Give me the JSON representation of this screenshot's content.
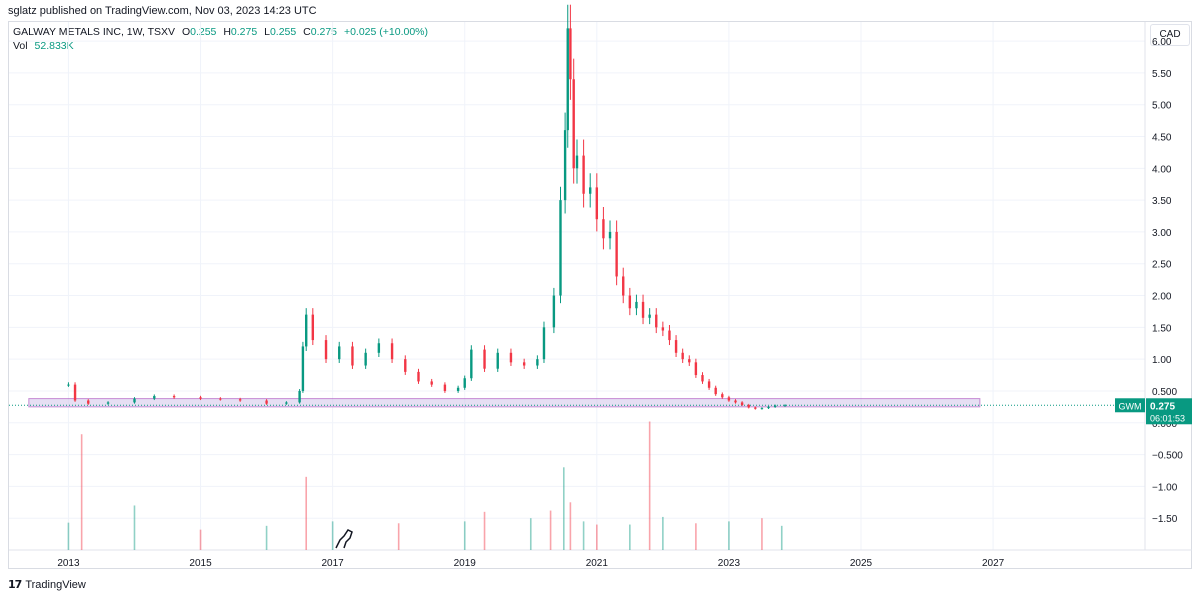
{
  "header": {
    "published_by": "sglatz published on TradingView.com, Nov 03, 2023 14:23 UTC"
  },
  "legend": {
    "symbol_line": "GALWAY METALS INC, 1W, TSXV",
    "o_label": "O",
    "o_value": "0.255",
    "h_label": "H",
    "h_value": "0.275",
    "l_label": "L",
    "l_value": "0.255",
    "c_label": "C",
    "c_value": "0.275",
    "change": "+0.025 (+10.00%)",
    "vol_label": "Vol",
    "vol_value": "52.833K"
  },
  "currency": "CAD",
  "price_tag": {
    "symbol": "GWM",
    "price": "0.275",
    "countdown": "06:01:53",
    "color": "#089981"
  },
  "footer": {
    "brand": "TradingView"
  },
  "colors": {
    "up": "#089981",
    "down": "#f23645",
    "zone": "#d1c4e9",
    "zone_border": "#9c27b0"
  },
  "chart_data": {
    "type": "candlestick",
    "symbol": "GWM",
    "interval": "1W",
    "y_axis": {
      "ticks": [
        6.0,
        5.5,
        5.0,
        4.5,
        4.0,
        3.5,
        3.0,
        2.5,
        2.0,
        1.5,
        1.0,
        0.5,
        0.0,
        -0.5,
        -1.0,
        -1.5
      ],
      "tick_labels": [
        "6.00",
        "5.50",
        "5.00",
        "4.50",
        "4.00",
        "3.50",
        "3.00",
        "2.50",
        "2.00",
        "1.50",
        "1.00",
        "0.500",
        "0.000",
        "−0.500",
        "−1.00",
        "−1.50"
      ],
      "ylim": [
        -2.0,
        6.3
      ]
    },
    "x_axis": {
      "ticks": [
        2013,
        2015,
        2017,
        2019,
        2021,
        2023,
        2025,
        2027
      ],
      "tick_labels": [
        "2013",
        "2015",
        "2017",
        "2019",
        "2021",
        "2023",
        "2025",
        "2027"
      ],
      "xlim": [
        2012.1,
        2029.3
      ]
    },
    "price_series": {
      "x": [
        2013.0,
        2013.1,
        2013.3,
        2013.6,
        2014.0,
        2014.3,
        2014.6,
        2015.0,
        2015.3,
        2015.6,
        2016.0,
        2016.3,
        2016.5,
        2016.55,
        2016.6,
        2016.7,
        2016.9,
        2017.1,
        2017.3,
        2017.5,
        2017.7,
        2017.9,
        2018.1,
        2018.3,
        2018.5,
        2018.7,
        2018.9,
        2019.0,
        2019.1,
        2019.3,
        2019.5,
        2019.7,
        2019.9,
        2020.1,
        2020.2,
        2020.35,
        2020.45,
        2020.52,
        2020.56,
        2020.6,
        2020.65,
        2020.7,
        2020.8,
        2020.9,
        2021.0,
        2021.1,
        2021.2,
        2021.3,
        2021.4,
        2021.5,
        2021.6,
        2021.7,
        2021.8,
        2021.9,
        2022.0,
        2022.1,
        2022.2,
        2022.3,
        2022.4,
        2022.5,
        2022.6,
        2022.7,
        2022.8,
        2022.9,
        2023.0,
        2023.1,
        2023.2,
        2023.3,
        2023.4,
        2023.5,
        2023.6,
        2023.7,
        2023.85
      ],
      "close": [
        0.6,
        0.35,
        0.3,
        0.32,
        0.38,
        0.42,
        0.4,
        0.38,
        0.37,
        0.35,
        0.3,
        0.32,
        0.5,
        1.2,
        1.7,
        1.3,
        1.0,
        1.2,
        0.9,
        1.1,
        1.25,
        1.0,
        0.8,
        0.65,
        0.6,
        0.5,
        0.55,
        0.7,
        1.15,
        0.85,
        1.1,
        0.95,
        0.9,
        1.0,
        1.5,
        2.0,
        3.5,
        4.6,
        6.2,
        5.4,
        4.0,
        4.2,
        3.6,
        3.7,
        3.2,
        2.9,
        3.0,
        2.3,
        2.0,
        1.8,
        1.9,
        1.65,
        1.7,
        1.5,
        1.45,
        1.3,
        1.1,
        1.0,
        0.95,
        0.75,
        0.65,
        0.55,
        0.45,
        0.4,
        0.35,
        0.32,
        0.28,
        0.24,
        0.22,
        0.23,
        0.25,
        0.27,
        0.275
      ]
    },
    "highlight_zone": {
      "y_low": 0.25,
      "y_high": 0.38,
      "x_start": 2012.4,
      "x_end": 2026.8
    },
    "current_price_line": 0.275,
    "volume_series": {
      "x": [
        2013.0,
        2013.2,
        2014.0,
        2015.0,
        2016.0,
        2016.6,
        2017.0,
        2018.0,
        2019.0,
        2019.3,
        2020.0,
        2020.3,
        2020.5,
        2020.6,
        2020.8,
        2021.0,
        2021.5,
        2021.8,
        2022.0,
        2022.5,
        2023.0,
        2023.5,
        2023.8
      ],
      "volume_axis_top": [
        -1.57,
        -0.18,
        -1.3,
        -1.68,
        -1.62,
        -0.85,
        -1.55,
        -1.58,
        -1.55,
        -1.4,
        -1.5,
        -1.38,
        -0.7,
        -1.25,
        -1.55,
        -1.6,
        -1.6,
        0.02,
        -1.48,
        -1.58,
        -1.55,
        -1.5,
        -1.62
      ]
    }
  }
}
